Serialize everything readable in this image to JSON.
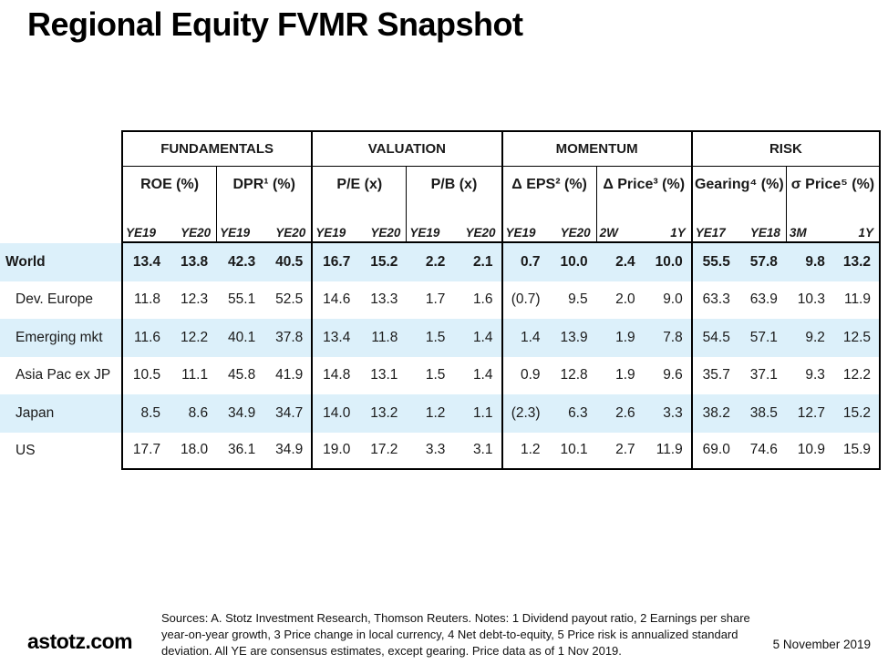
{
  "page": {
    "title": "Regional Equity FVMR Snapshot",
    "footer": {
      "brand": "astotz.com",
      "notes": "Sources: A. Stotz Investment Research, Thomson Reuters. Notes: 1 Dividend payout ratio, 2 Earnings per share year-on-year growth, 3 Price change in local currency, 4 Net debt-to-equity, 5 Price risk is annualized standard deviation. All YE are consensus estimates, except gearing. Price data as of 1 Nov 2019.",
      "date": "5 November 2019"
    }
  },
  "colors": {
    "row_highlight": "#dcf0fa",
    "border": "#000000",
    "text": "#1a1a1a"
  },
  "chart_data": {
    "type": "table",
    "groups": [
      {
        "label": "FUNDAMENTALS",
        "metrics": [
          {
            "label": "ROE (%)",
            "cols": [
              "YE19",
              "YE20"
            ]
          },
          {
            "label": "DPR¹ (%)",
            "cols": [
              "YE19",
              "YE20"
            ]
          }
        ]
      },
      {
        "label": "VALUATION",
        "metrics": [
          {
            "label": "P/E (x)",
            "cols": [
              "YE19",
              "YE20"
            ]
          },
          {
            "label": "P/B (x)",
            "cols": [
              "YE19",
              "YE20"
            ]
          }
        ]
      },
      {
        "label": "MOMENTUM",
        "metrics": [
          {
            "label": "Δ EPS² (%)",
            "cols": [
              "YE19",
              "YE20"
            ]
          },
          {
            "label": "Δ Price³ (%)",
            "cols": [
              "2W",
              "1Y"
            ]
          }
        ]
      },
      {
        "label": "RISK",
        "metrics": [
          {
            "label": "Gearing⁴ (%)",
            "cols": [
              "YE17",
              "YE18"
            ]
          },
          {
            "label": "σ Price⁵ (%)",
            "cols": [
              "3M",
              "1Y"
            ]
          }
        ]
      }
    ],
    "rows": [
      {
        "label": "World",
        "bold": true,
        "highlight": true,
        "indent": false,
        "values": [
          "13.4",
          "13.8",
          "42.3",
          "40.5",
          "16.7",
          "15.2",
          "2.2",
          "2.1",
          "0.7",
          "10.0",
          "2.4",
          "10.0",
          "55.5",
          "57.8",
          "9.8",
          "13.2"
        ]
      },
      {
        "label": "Dev. Europe",
        "bold": false,
        "highlight": false,
        "indent": true,
        "values": [
          "11.8",
          "12.3",
          "55.1",
          "52.5",
          "14.6",
          "13.3",
          "1.7",
          "1.6",
          "(0.7)",
          "9.5",
          "2.0",
          "9.0",
          "63.3",
          "63.9",
          "10.3",
          "11.9"
        ]
      },
      {
        "label": "Emerging mkt",
        "bold": false,
        "highlight": true,
        "indent": true,
        "values": [
          "11.6",
          "12.2",
          "40.1",
          "37.8",
          "13.4",
          "11.8",
          "1.5",
          "1.4",
          "1.4",
          "13.9",
          "1.9",
          "7.8",
          "54.5",
          "57.1",
          "9.2",
          "12.5"
        ]
      },
      {
        "label": "Asia Pac ex JP",
        "bold": false,
        "highlight": false,
        "indent": true,
        "values": [
          "10.5",
          "11.1",
          "45.8",
          "41.9",
          "14.8",
          "13.1",
          "1.5",
          "1.4",
          "0.9",
          "12.8",
          "1.9",
          "9.6",
          "35.7",
          "37.1",
          "9.3",
          "12.2"
        ]
      },
      {
        "label": "Japan",
        "bold": false,
        "highlight": true,
        "indent": true,
        "values": [
          "8.5",
          "8.6",
          "34.9",
          "34.7",
          "14.0",
          "13.2",
          "1.2",
          "1.1",
          "(2.3)",
          "6.3",
          "2.6",
          "3.3",
          "38.2",
          "38.5",
          "12.7",
          "15.2"
        ]
      },
      {
        "label": "US",
        "bold": false,
        "highlight": false,
        "indent": true,
        "values": [
          "17.7",
          "18.0",
          "36.1",
          "34.9",
          "19.0",
          "17.2",
          "3.3",
          "3.1",
          "1.2",
          "10.1",
          "2.7",
          "11.9",
          "69.0",
          "74.6",
          "10.9",
          "15.9"
        ]
      }
    ]
  }
}
